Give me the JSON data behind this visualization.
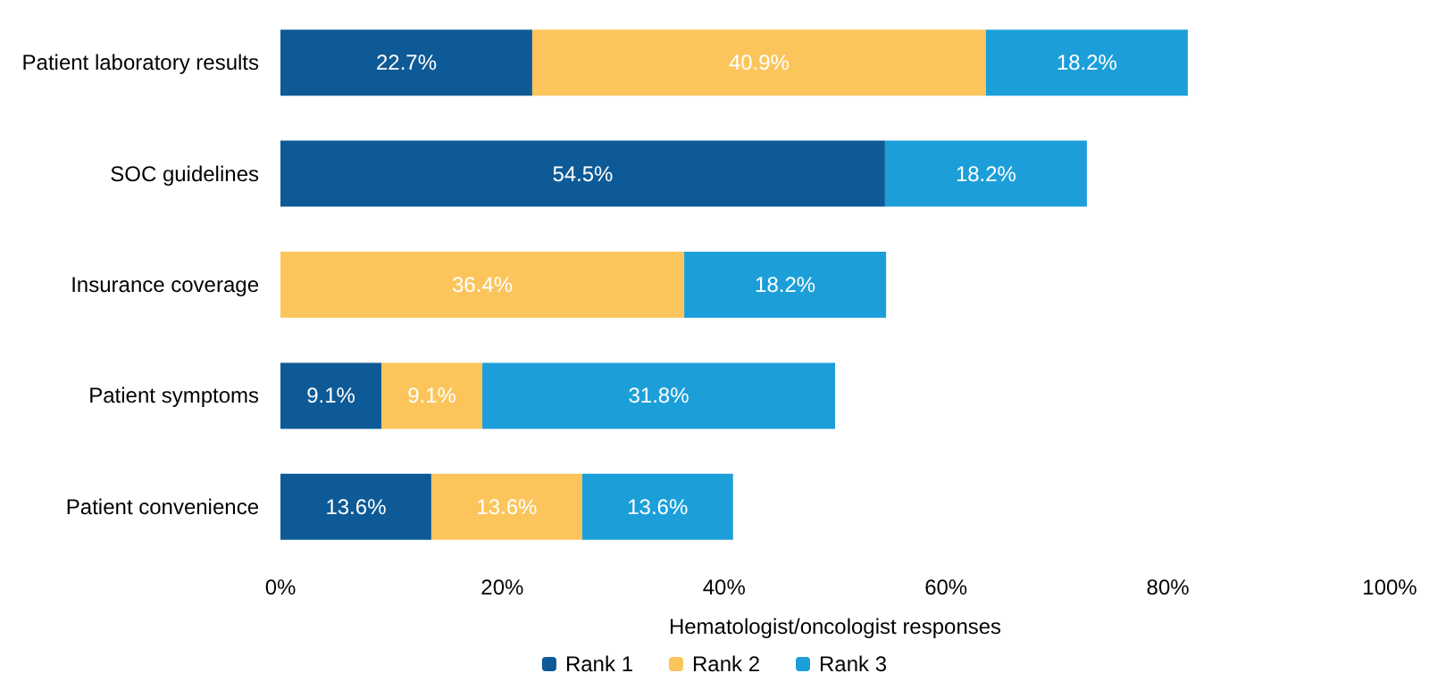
{
  "chart_data": {
    "type": "bar",
    "orientation": "horizontal",
    "stacked": true,
    "xlabel": "Hematologist/oncologist responses",
    "categories": [
      "Patient laboratory results",
      "SOC guidelines",
      "Insurance coverage",
      "Patient symptoms",
      "Patient convenience"
    ],
    "series": [
      {
        "name": "Rank 1",
        "color": "#0e5a96",
        "values": [
          22.7,
          54.5,
          null,
          9.1,
          13.6
        ],
        "value_labels": [
          "22.7%",
          "54.5%",
          null,
          "9.1%",
          "13.6%"
        ]
      },
      {
        "name": "Rank 2",
        "color": "#fcc55c",
        "values": [
          40.9,
          null,
          36.4,
          9.1,
          13.6
        ],
        "value_labels": [
          "40.9%",
          null,
          "36.4%",
          "9.1%",
          "13.6%"
        ]
      },
      {
        "name": "Rank 3",
        "color": "#1c9fd9",
        "values": [
          18.2,
          18.2,
          18.2,
          31.8,
          13.6
        ],
        "value_labels": [
          "18.2%",
          "18.2%",
          "18.2%",
          "31.8%",
          "13.6%"
        ]
      }
    ],
    "xlim": [
      0,
      100
    ],
    "xticks": [
      {
        "value": 0,
        "label": "0%"
      },
      {
        "value": 20,
        "label": "20%"
      },
      {
        "value": 40,
        "label": "40%"
      },
      {
        "value": 60,
        "label": "60%"
      },
      {
        "value": 80,
        "label": "80%"
      },
      {
        "value": 100,
        "label": "100%"
      }
    ],
    "grid": false,
    "legend": "bottom"
  }
}
